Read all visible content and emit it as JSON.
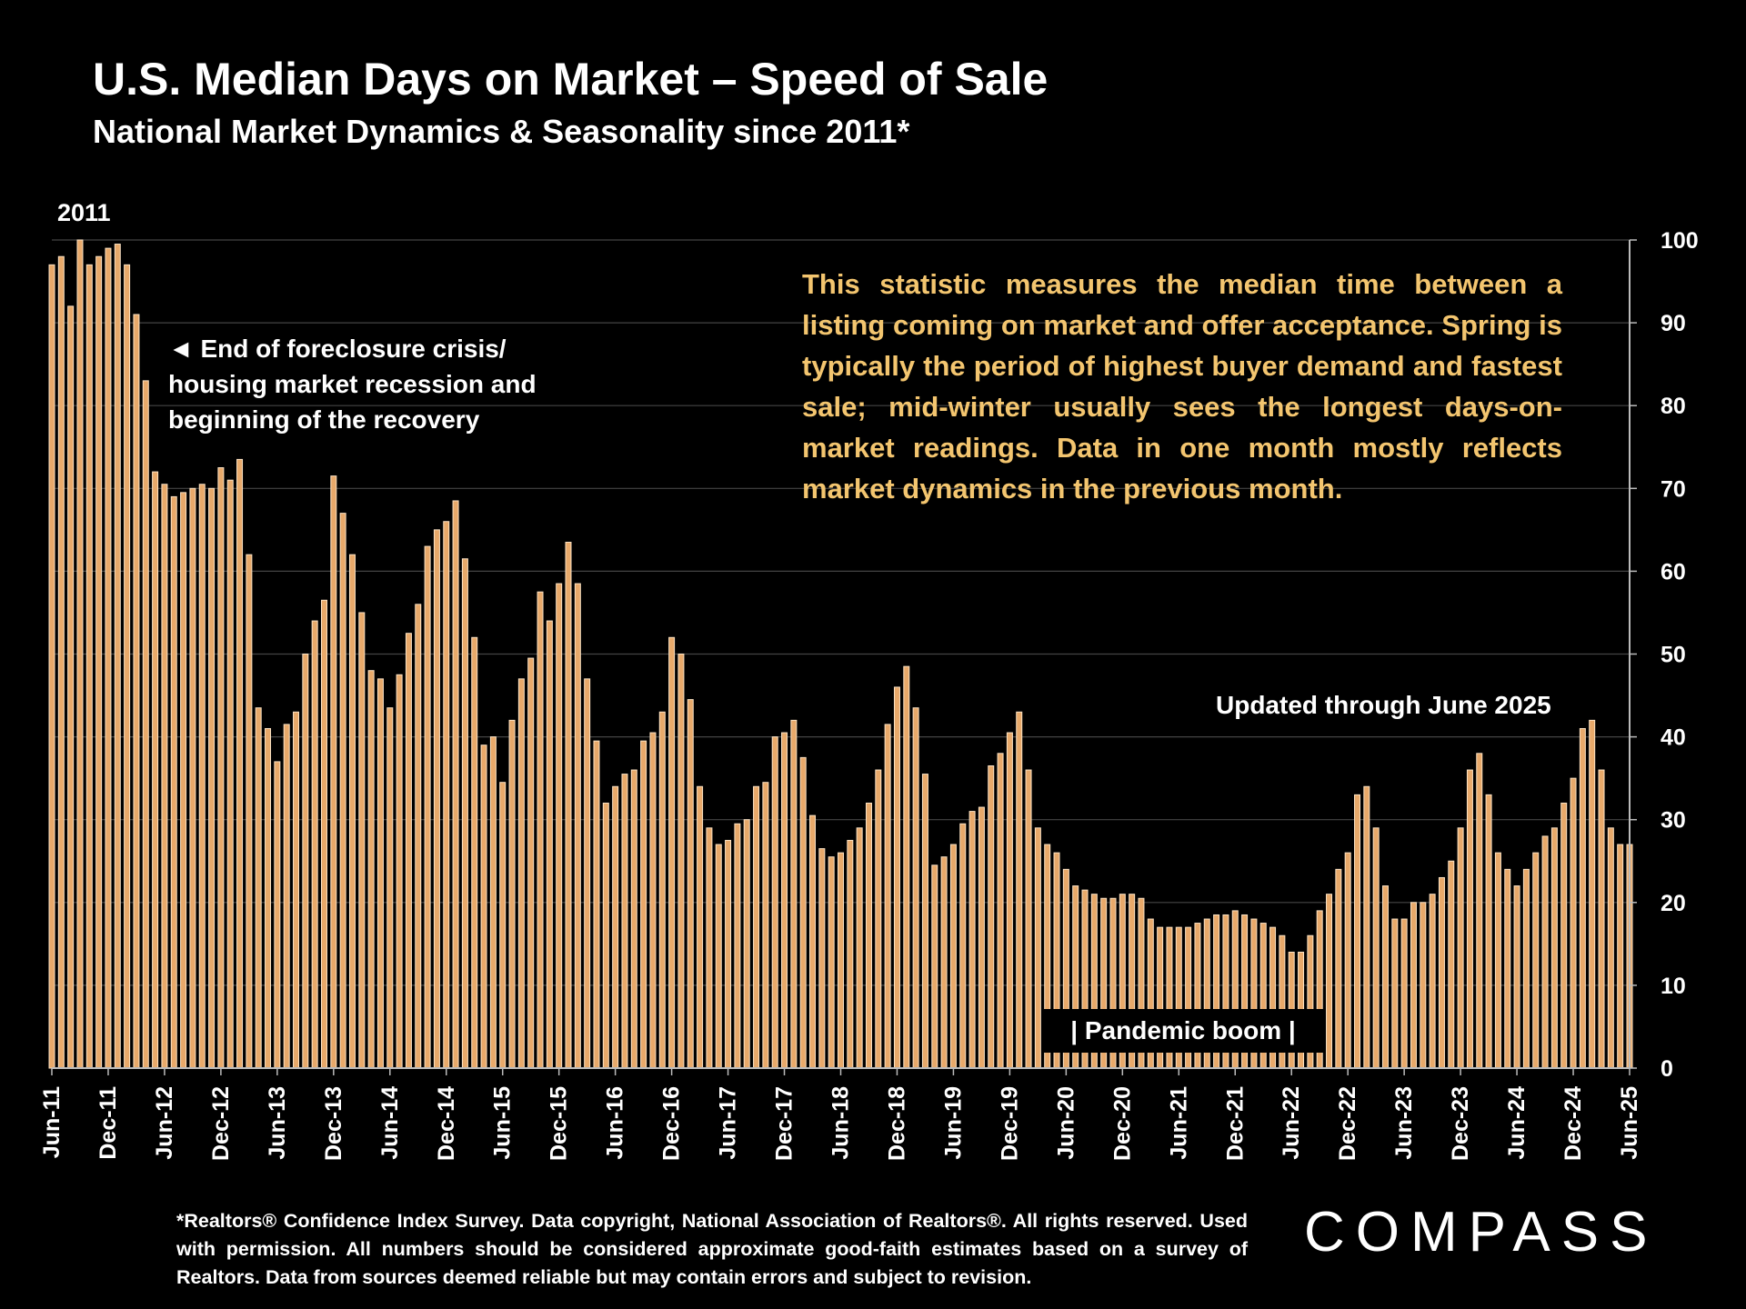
{
  "header": {
    "title": "U.S. Median Days on Market – Speed of Sale",
    "subtitle": "National Market Dynamics & Seasonality since 2011*"
  },
  "annotations": {
    "year_start": "2011",
    "foreclosure": "◄ End of foreclosure crisis/ housing market recession and beginning of the recovery",
    "note": "This statistic measures the median time between a listing coming on market and offer acceptance. Spring is typically the period of highest buyer demand and fastest sale; mid-winter usually sees the longest days-on-market readings. Data in one month mostly reflects market dynamics in the previous month.",
    "updated": "Updated through June 2025",
    "pandemic": "| Pandemic boom |"
  },
  "footnote": "*Realtors® Confidence Index Survey. Data copyright, National Association of Realtors®. All rights reserved. Used with permission. All numbers should be considered approximate good-faith estimates based on a survey of Realtors. Data from sources deemed reliable but may contain errors and subject to revision.",
  "logo": "COMPASS",
  "colors": {
    "bar_fill": "#e8a96a",
    "bar_stroke": "#fbe2c4",
    "note_text": "#f3c56f",
    "grid": "#444444",
    "background": "#000000"
  },
  "chart_data": {
    "type": "bar",
    "title": "U.S. Median Days on Market – Speed of Sale",
    "x_tick_labels": [
      "Jun-11",
      "Dec-11",
      "Jun-12",
      "Dec-12",
      "Jun-13",
      "Dec-13",
      "Jun-14",
      "Dec-14",
      "Jun-15",
      "Dec-15",
      "Jun-16",
      "Dec-16",
      "Jun-17",
      "Dec-17",
      "Jun-18",
      "Dec-18",
      "Jun-19",
      "Dec-19",
      "Jun-20",
      "Dec-20",
      "Jun-21",
      "Dec-21",
      "Jun-22",
      "Dec-22",
      "Jun-23",
      "Dec-23",
      "Jun-24",
      "Dec-24",
      "Jun-25"
    ],
    "y_ticks": [
      0,
      10,
      20,
      30,
      40,
      50,
      60,
      70,
      80,
      90,
      100
    ],
    "ylim": [
      0,
      100
    ],
    "grid": true,
    "start_month": "Jun-11",
    "end_month": "Jun-25",
    "values": [
      97,
      98,
      92,
      100,
      97,
      98,
      99,
      99.5,
      97,
      91,
      83,
      72,
      70.5,
      69,
      69.5,
      70,
      70.5,
      70,
      72.5,
      71,
      73.5,
      62,
      43.5,
      41,
      37,
      41.5,
      43,
      50,
      54,
      56.5,
      71.5,
      67,
      62,
      55,
      48,
      47,
      43.5,
      47.5,
      52.5,
      56,
      63,
      65,
      66,
      68.5,
      61.5,
      52,
      39,
      40,
      34.5,
      42,
      47,
      49.5,
      57.5,
      54,
      58.5,
      63.5,
      58.5,
      47,
      39.5,
      32,
      34,
      35.5,
      36,
      39.5,
      40.5,
      43,
      52,
      50,
      44.5,
      34,
      29,
      27,
      27.5,
      29.5,
      30,
      34,
      34.5,
      40,
      40.5,
      42,
      37.5,
      30.5,
      26.5,
      25.5,
      26,
      27.5,
      29,
      32,
      36,
      41.5,
      46,
      48.5,
      43.5,
      35.5,
      24.5,
      25.5,
      27,
      29.5,
      31,
      31.5,
      36.5,
      38,
      40.5,
      43,
      36,
      29,
      27,
      26,
      24,
      22,
      21.5,
      21,
      20.5,
      20.5,
      21,
      21,
      20.5,
      18,
      17,
      17,
      17,
      17,
      17.5,
      18,
      18.5,
      18.5,
      19,
      18.5,
      18,
      17.5,
      17,
      16,
      14,
      14,
      16,
      19,
      21,
      24,
      26,
      33,
      34,
      29,
      22,
      18,
      18,
      20,
      20,
      21,
      23,
      25,
      29,
      36,
      38,
      33,
      26,
      24,
      22,
      24,
      26,
      28,
      29,
      32,
      35,
      41,
      42,
      36,
      29,
      27,
      27
    ]
  }
}
